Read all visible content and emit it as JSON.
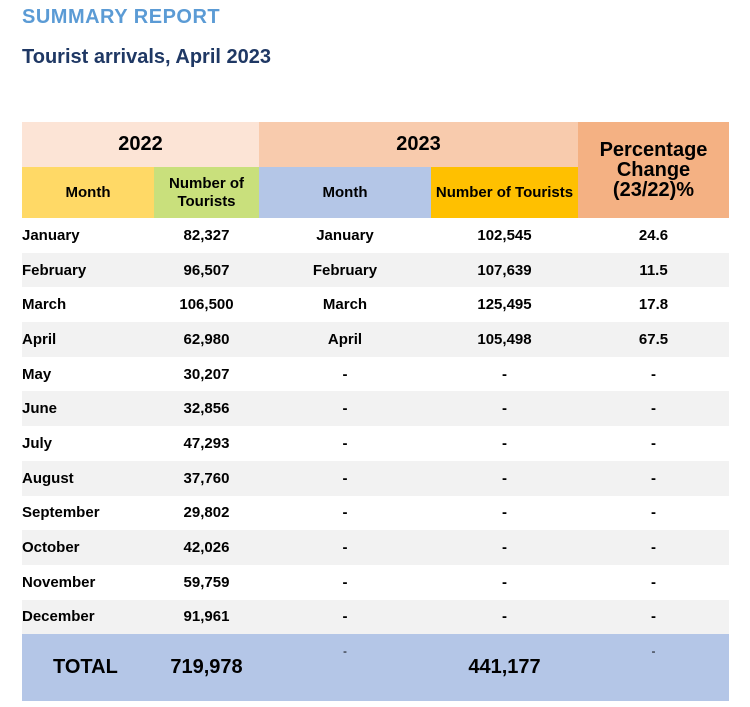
{
  "header": {
    "label": "SUMMARY REPORT",
    "title": "Tourist arrivals, April 2023"
  },
  "table": {
    "year_a": "2022",
    "year_b": "2023",
    "col_month": "Month",
    "col_number": "Number of Tourists",
    "col_pct": "Percentage Change (23/22)%",
    "rows": [
      {
        "month_a": "January",
        "num_a": "82,327",
        "month_b": "January",
        "num_b": "102,545",
        "pct": "24.6"
      },
      {
        "month_a": "February",
        "num_a": "96,507",
        "month_b": "February",
        "num_b": "107,639",
        "pct": "11.5"
      },
      {
        "month_a": "March",
        "num_a": "106,500",
        "month_b": "March",
        "num_b": "125,495",
        "pct": "17.8"
      },
      {
        "month_a": "April",
        "num_a": "62,980",
        "month_b": "April",
        "num_b": "105,498",
        "pct": "67.5"
      },
      {
        "month_a": "May",
        "num_a": "30,207",
        "month_b": "-",
        "num_b": "-",
        "pct": "-"
      },
      {
        "month_a": "June",
        "num_a": "32,856",
        "month_b": "-",
        "num_b": "-",
        "pct": "-"
      },
      {
        "month_a": "July",
        "num_a": "47,293",
        "month_b": "-",
        "num_b": "-",
        "pct": "-"
      },
      {
        "month_a": "August",
        "num_a": "37,760",
        "month_b": "-",
        "num_b": "-",
        "pct": "-"
      },
      {
        "month_a": "September",
        "num_a": "29,802",
        "month_b": "-",
        "num_b": "-",
        "pct": "-"
      },
      {
        "month_a": "October",
        "num_a": "42,026",
        "month_b": "-",
        "num_b": "-",
        "pct": "-"
      },
      {
        "month_a": "November",
        "num_a": "59,759",
        "month_b": "-",
        "num_b": "-",
        "pct": "-"
      },
      {
        "month_a": "December",
        "num_a": "91,961",
        "month_b": "-",
        "num_b": "-",
        "pct": "-"
      }
    ],
    "total": {
      "label": "TOTAL",
      "num_a": "719,978",
      "month_b": "-",
      "num_b": "441,177",
      "pct": "-"
    }
  },
  "colors": {
    "label_blue": "#5b9bd5",
    "title_navy": "#1f3864",
    "year_2022_bg": "#fce4d6",
    "year_2023_bg": "#f8cbad",
    "pct_bg": "#f4b183",
    "month_2022_bg": "#ffd966",
    "num_2022_bg": "#c9e07c",
    "month_2023_bg": "#b4c6e7",
    "num_2023_bg": "#ffc000",
    "total_bg": "#b4c6e7"
  }
}
